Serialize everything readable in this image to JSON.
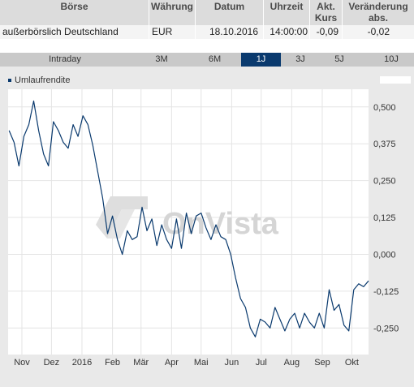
{
  "table": {
    "headers": {
      "boerse": "Börse",
      "waehrung": "Währung",
      "datum": "Datum",
      "uhrzeit": "Uhrzeit",
      "kurs_line1": "Akt.",
      "kurs_line2": "Kurs",
      "veraenderung": "Veränderung",
      "abs": "abs."
    },
    "row": {
      "boerse": "außerbörslich Deutschland",
      "waehrung": "EUR",
      "datum": "18.10.2016",
      "uhrzeit": "14:00:00",
      "kurs": "-0,09",
      "abs": "-0,02"
    }
  },
  "tabs": [
    {
      "label": "Intraday",
      "active": false
    },
    {
      "label": "3M",
      "active": false
    },
    {
      "label": "6M",
      "active": false
    },
    {
      "label": "1J",
      "active": true
    },
    {
      "label": "3J",
      "active": false
    },
    {
      "label": "5J",
      "active": false
    },
    {
      "label": "10J",
      "active": false
    }
  ],
  "watermark": "OnVista",
  "colors": {
    "line": "#0a3a6e",
    "negative": "#cc0000",
    "active_tab": "#0a3a6e"
  },
  "chart_data": {
    "type": "line",
    "series": [
      {
        "name": "Umlaufrendite",
        "x": [
          "2015-10-19",
          "2015-10-24",
          "2015-10-29",
          "2015-11-03",
          "2015-11-08",
          "2015-11-13",
          "2015-11-18",
          "2015-11-23",
          "2015-11-28",
          "2015-12-03",
          "2015-12-08",
          "2015-12-13",
          "2015-12-18",
          "2015-12-23",
          "2015-12-28",
          "2016-01-02",
          "2016-01-07",
          "2016-01-12",
          "2016-01-17",
          "2016-01-22",
          "2016-01-27",
          "2016-02-01",
          "2016-02-06",
          "2016-02-11",
          "2016-02-16",
          "2016-02-21",
          "2016-02-26",
          "2016-03-02",
          "2016-03-07",
          "2016-03-12",
          "2016-03-17",
          "2016-03-22",
          "2016-03-27",
          "2016-04-01",
          "2016-04-06",
          "2016-04-11",
          "2016-04-16",
          "2016-04-21",
          "2016-04-26",
          "2016-05-01",
          "2016-05-06",
          "2016-05-11",
          "2016-05-16",
          "2016-05-21",
          "2016-05-26",
          "2016-05-31",
          "2016-06-05",
          "2016-06-10",
          "2016-06-15",
          "2016-06-20",
          "2016-06-25",
          "2016-06-30",
          "2016-07-05",
          "2016-07-10",
          "2016-07-15",
          "2016-07-20",
          "2016-07-25",
          "2016-07-30",
          "2016-08-04",
          "2016-08-09",
          "2016-08-14",
          "2016-08-19",
          "2016-08-24",
          "2016-08-29",
          "2016-09-03",
          "2016-09-08",
          "2016-09-13",
          "2016-09-18",
          "2016-09-23",
          "2016-09-28",
          "2016-10-03",
          "2016-10-08",
          "2016-10-13",
          "2016-10-18"
        ],
        "values": [
          0.42,
          0.38,
          0.3,
          0.4,
          0.44,
          0.52,
          0.42,
          0.34,
          0.3,
          0.45,
          0.42,
          0.38,
          0.36,
          0.44,
          0.4,
          0.47,
          0.44,
          0.37,
          0.28,
          0.19,
          0.07,
          0.13,
          0.05,
          0.0,
          0.08,
          0.05,
          0.06,
          0.16,
          0.08,
          0.12,
          0.03,
          0.1,
          0.05,
          0.02,
          0.12,
          0.02,
          0.14,
          0.07,
          0.13,
          0.14,
          0.09,
          0.05,
          0.1,
          0.06,
          0.05,
          0.0,
          -0.08,
          -0.15,
          -0.18,
          -0.25,
          -0.28,
          -0.22,
          -0.23,
          -0.25,
          -0.18,
          -0.22,
          -0.26,
          -0.22,
          -0.2,
          -0.25,
          -0.2,
          -0.23,
          -0.25,
          -0.2,
          -0.25,
          -0.12,
          -0.19,
          -0.17,
          -0.24,
          -0.26,
          -0.12,
          -0.1,
          -0.11,
          -0.09
        ]
      }
    ],
    "x_tick_labels": [
      "Nov",
      "Dez",
      "2016",
      "Feb",
      "Mär",
      "Apr",
      "Mai",
      "Jun",
      "Jul",
      "Aug",
      "Sep",
      "Okt"
    ],
    "x_tick_dates": [
      "2015-11-01",
      "2015-12-01",
      "2016-01-01",
      "2016-02-01",
      "2016-03-01",
      "2016-04-01",
      "2016-05-01",
      "2016-06-01",
      "2016-07-01",
      "2016-08-01",
      "2016-09-01",
      "2016-10-01"
    ],
    "y_ticks": [
      -0.25,
      -0.125,
      0.0,
      0.125,
      0.25,
      0.375,
      0.5
    ],
    "y_tick_labels": [
      "-0,250",
      "-0,125",
      "0,000",
      "0,125",
      "0,250",
      "0,375",
      "0,500"
    ],
    "x_range": [
      "2015-10-18",
      "2016-10-18"
    ],
    "ylim": [
      -0.34,
      0.56
    ],
    "grid": true,
    "legend": "top-left",
    "title": "",
    "xlabel": "",
    "ylabel": ""
  }
}
